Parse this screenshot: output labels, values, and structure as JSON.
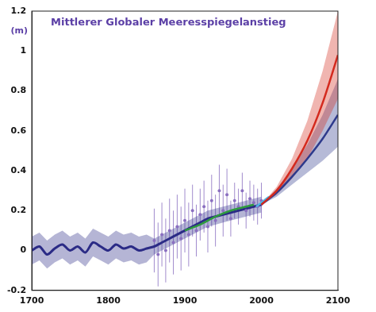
{
  "chart_data": {
    "type": "line",
    "title": "Mittlerer Globaler Meeresspiegelanstieg",
    "y_label": "(m)",
    "xlim": [
      1700,
      2100
    ],
    "xticks": [
      1700,
      1800,
      1900,
      2000,
      2100
    ],
    "ylim": [
      -0.2,
      1.2
    ],
    "yticks": [
      -0.2,
      0,
      0.2,
      0.4,
      0.6,
      0.8,
      1,
      1.2
    ],
    "grid": false,
    "series": [
      {
        "type": "line",
        "color": "#2b2b86",
        "x": [
          1700,
          1710,
          1720,
          1730,
          1740,
          1750,
          1760,
          1770,
          1780,
          1790,
          1800,
          1810,
          1820,
          1830,
          1840,
          1850,
          1860,
          1870,
          1880,
          1890,
          1900,
          1910,
          1920,
          1930,
          1940,
          1950,
          1960,
          1970,
          1980,
          1990,
          2000
        ],
        "values": [
          0.0,
          0.02,
          -0.02,
          0.01,
          0.03,
          0.0,
          0.02,
          -0.01,
          0.04,
          0.02,
          0.0,
          0.03,
          0.01,
          0.02,
          0.0,
          0.01,
          0.02,
          0.04,
          0.06,
          0.08,
          0.1,
          0.12,
          0.14,
          0.16,
          0.17,
          0.18,
          0.19,
          0.2,
          0.21,
          0.22,
          0.23
        ],
        "lower": [
          -0.07,
          -0.05,
          -0.09,
          -0.06,
          -0.04,
          -0.07,
          -0.05,
          -0.08,
          -0.03,
          -0.05,
          -0.07,
          -0.04,
          -0.06,
          -0.05,
          -0.07,
          -0.06,
          -0.02,
          0.0,
          0.02,
          0.04,
          0.06,
          0.08,
          0.1,
          0.12,
          0.13,
          0.14,
          0.15,
          0.16,
          0.17,
          0.18,
          0.19
        ],
        "upper": [
          0.07,
          0.09,
          0.05,
          0.08,
          0.1,
          0.07,
          0.09,
          0.06,
          0.11,
          0.09,
          0.07,
          0.1,
          0.08,
          0.09,
          0.07,
          0.08,
          0.06,
          0.08,
          0.1,
          0.12,
          0.14,
          0.16,
          0.18,
          0.2,
          0.21,
          0.22,
          0.23,
          0.24,
          0.25,
          0.26,
          0.27
        ]
      },
      {
        "type": "scatter",
        "marker": "circle",
        "color": "#8a6fc0",
        "x": [
          1860,
          1865,
          1870,
          1875,
          1880,
          1885,
          1890,
          1895,
          1900,
          1905,
          1910,
          1915,
          1920,
          1925,
          1930,
          1935,
          1940,
          1945,
          1950,
          1955,
          1960,
          1965,
          1970,
          1975,
          1980,
          1985,
          1990,
          1995,
          2000
        ],
        "values": [
          0.05,
          -0.02,
          0.08,
          0.0,
          0.1,
          0.04,
          0.12,
          0.06,
          0.15,
          0.08,
          0.2,
          0.1,
          0.18,
          0.22,
          0.12,
          0.25,
          0.15,
          0.3,
          0.2,
          0.28,
          0.16,
          0.25,
          0.22,
          0.3,
          0.2,
          0.26,
          0.24,
          0.22,
          0.25
        ],
        "errors": [
          0.16,
          0.16,
          0.16,
          0.16,
          0.16,
          0.16,
          0.16,
          0.16,
          0.16,
          0.16,
          0.13,
          0.13,
          0.13,
          0.13,
          0.13,
          0.13,
          0.13,
          0.13,
          0.13,
          0.13,
          0.09,
          0.09,
          0.09,
          0.09,
          0.09,
          0.09,
          0.09,
          0.09,
          0.09
        ]
      },
      {
        "type": "line",
        "color": "#2e9a3e",
        "x": [
          1900,
          1920,
          1940,
          1960,
          1980,
          1990
        ],
        "values": [
          0.1,
          0.13,
          0.17,
          0.2,
          0.22,
          0.23
        ]
      },
      {
        "type": "line",
        "color": "#4fb3e0",
        "x": [
          1993,
          2000,
          2010
        ],
        "values": [
          0.22,
          0.24,
          0.27
        ]
      },
      {
        "type": "line",
        "color": "#2d3a8c",
        "x": [
          2000,
          2020,
          2040,
          2060,
          2080,
          2100
        ],
        "values": [
          0.23,
          0.29,
          0.37,
          0.46,
          0.56,
          0.68
        ],
        "lower": [
          0.23,
          0.27,
          0.33,
          0.39,
          0.45,
          0.52
        ],
        "upper": [
          0.23,
          0.31,
          0.41,
          0.53,
          0.68,
          0.86
        ]
      },
      {
        "type": "line",
        "color": "#d42a1e",
        "x": [
          2000,
          2020,
          2040,
          2060,
          2080,
          2100
        ],
        "values": [
          0.23,
          0.3,
          0.41,
          0.55,
          0.74,
          0.98
        ],
        "lower": [
          0.23,
          0.28,
          0.36,
          0.46,
          0.6,
          0.76
        ],
        "upper": [
          0.23,
          0.32,
          0.46,
          0.65,
          0.9,
          1.2
        ]
      }
    ]
  }
}
